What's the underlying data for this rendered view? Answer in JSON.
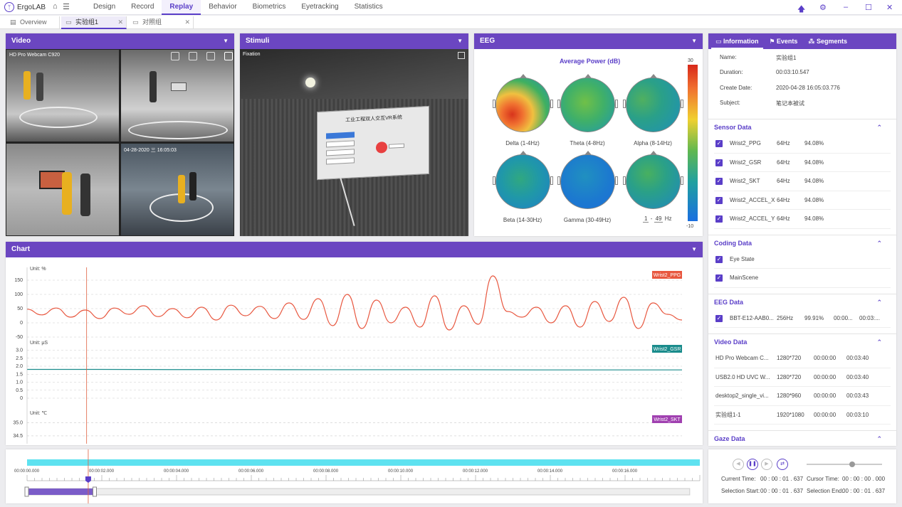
{
  "app": {
    "name": "ErgoLAB"
  },
  "nav": {
    "items": [
      {
        "label": "Design",
        "active": false
      },
      {
        "label": "Record",
        "active": false
      },
      {
        "label": "Replay",
        "active": true
      },
      {
        "label": "Behavior",
        "active": false
      },
      {
        "label": "Biometrics",
        "active": false
      },
      {
        "label": "Eyetracking",
        "active": false
      },
      {
        "label": "Statistics",
        "active": false
      }
    ]
  },
  "tabs": [
    {
      "label": "Overview",
      "active": false
    },
    {
      "label": "实验组1",
      "active": true
    },
    {
      "label": "对照组",
      "active": false
    }
  ],
  "video": {
    "title": "Video",
    "camera": "HD Pro Webcam C920",
    "timestamp": "04-28-2020 三 16:05:03"
  },
  "stimuli": {
    "title": "Stimuli",
    "label": "Fixation",
    "screen_title": "工业工程双人交互VR系统"
  },
  "eeg": {
    "title": "EEG",
    "chart_title": "Average Power (dB)",
    "scale_max": "30",
    "scale_min": "-10",
    "range_from": "1",
    "range_to": "49",
    "range_unit": "Hz",
    "bands": [
      "Delta (1-4Hz)",
      "Theta (4-8Hz)",
      "Alpha (8-14Hz)",
      "Beta (14-30Hz)",
      "Gamma (30-49Hz)"
    ]
  },
  "chart": {
    "title": "Chart"
  },
  "chart_data": {
    "type": "line",
    "x_range": [
      0,
      18
    ],
    "cursor_x": 1.637,
    "series": [
      {
        "name": "Wrist2_PPG",
        "unit_label": "Unit: %",
        "color": "#e8573f",
        "ylim": [
          -30,
          175
        ],
        "yticks": [
          "150",
          "100",
          "50",
          "0",
          "-50"
        ],
        "x": [
          0,
          0.4,
          0.8,
          1.2,
          1.6,
          2.0,
          2.4,
          2.8,
          3.2,
          3.6,
          4.0,
          4.4,
          4.8,
          5.2,
          5.6,
          6.0,
          6.4,
          6.8,
          7.2,
          7.6,
          8.0,
          8.4,
          8.8,
          9.2,
          9.6,
          10.0,
          10.4,
          10.8,
          11.2,
          11.6,
          12.0,
          12.4,
          12.8,
          13.2,
          13.6,
          14.0,
          14.4,
          14.8,
          15.2,
          15.6,
          16.0,
          16.4,
          16.8,
          17.2,
          17.6,
          18.0
        ],
        "y": [
          48,
          28,
          52,
          20,
          45,
          15,
          52,
          30,
          60,
          22,
          50,
          18,
          55,
          10,
          62,
          25,
          58,
          15,
          70,
          12,
          85,
          -10,
          100,
          -20,
          80,
          0,
          55,
          -15,
          95,
          -25,
          60,
          -5,
          165,
          40,
          20,
          55,
          0,
          60,
          -15,
          75,
          5,
          90,
          -20,
          70,
          30,
          10
        ]
      },
      {
        "name": "Wrist2_GSR",
        "unit_label": "Unit: μS",
        "color": "#1a8c8c",
        "ylim": [
          0,
          3.2
        ],
        "yticks": [
          "3.0",
          "2.5",
          "2.0",
          "1.5",
          "1.0",
          "0.5",
          "0"
        ],
        "x": [
          0,
          2,
          4,
          6,
          8,
          10,
          12,
          14,
          16,
          18
        ],
        "y": [
          1.8,
          1.8,
          1.79,
          1.79,
          1.78,
          1.78,
          1.78,
          1.77,
          1.77,
          1.77
        ]
      },
      {
        "name": "Wrist2_SKT",
        "unit_label": "Unit: ℃",
        "color": "#a040b0",
        "ylim": [
          34.2,
          35.2
        ],
        "yticks": [
          "35.0",
          "34.5"
        ],
        "x": [],
        "y": []
      }
    ]
  },
  "timeline": {
    "ticks": [
      "00:00:00.000",
      "00:00:02.000",
      "00:00:04.000",
      "00:00:06.000",
      "00:00:08.000",
      "00:00:10.000",
      "00:00:12.000",
      "00:00:14.000",
      "00:00:16.000"
    ],
    "duration_s": 18,
    "selection_fraction": 0.1
  },
  "playback": {
    "current_time_label": "Current Time:",
    "current_time": "00 : 00 : 01 . 637",
    "cursor_time_label": "Cursor Time:",
    "cursor_time": "00 : 00 : 00 . 000",
    "selection_start_label": "Selection Start:",
    "selection_start": "00 : 00 : 01 . 637",
    "selection_end_label": "Selection End:",
    "selection_end": "00 : 00 : 01 . 637",
    "speed_level": 0.6
  },
  "info": {
    "tabs": [
      "Information",
      "Events",
      "Segments"
    ],
    "fields": [
      {
        "label": "Name:",
        "value": "实验组1"
      },
      {
        "label": "Duration:",
        "value": "00:03:10.547"
      },
      {
        "label": "Create Date:",
        "value": "2020-04-28 16:05:03.776"
      },
      {
        "label": "Subject:",
        "value": "笔记本被试"
      }
    ],
    "sensor_title": "Sensor Data",
    "sensors": [
      {
        "name": "Wrist2_PPG",
        "rate": "64Hz",
        "pct": "94.08%"
      },
      {
        "name": "Wrist2_GSR",
        "rate": "64Hz",
        "pct": "94.08%"
      },
      {
        "name": "Wrist2_SKT",
        "rate": "64Hz",
        "pct": "94.08%"
      },
      {
        "name": "Wrist2_ACCEL_X",
        "rate": "64Hz",
        "pct": "94.08%"
      },
      {
        "name": "Wrist2_ACCEL_Y",
        "rate": "64Hz",
        "pct": "94.08%"
      }
    ],
    "coding_title": "Coding Data",
    "coding": [
      "Eye State",
      "MainScene"
    ],
    "eeg_title": "EEG Data",
    "eeg_rows": [
      {
        "name": "BBT-E12-AAB0...",
        "rate": "256Hz",
        "pct": "99.91%",
        "start": "00:00...",
        "end": "00:03:..."
      }
    ],
    "video_title": "Video Data",
    "video_rows": [
      {
        "name": "HD Pro Webcam C...",
        "res": "1280*720",
        "start": "00:00:00",
        "end": "00:03:40"
      },
      {
        "name": "USB2.0 HD UVC W...",
        "res": "1280*720",
        "start": "00:00:00",
        "end": "00:03:40"
      },
      {
        "name": "desktop2_single_vi...",
        "res": "1280*960",
        "start": "00:00:00",
        "end": "00:03:43"
      },
      {
        "name": "实验组1-1",
        "res": "1920*1080",
        "start": "00:00:00",
        "end": "00:03:10"
      }
    ],
    "gaze_title": "Gaze Data"
  }
}
